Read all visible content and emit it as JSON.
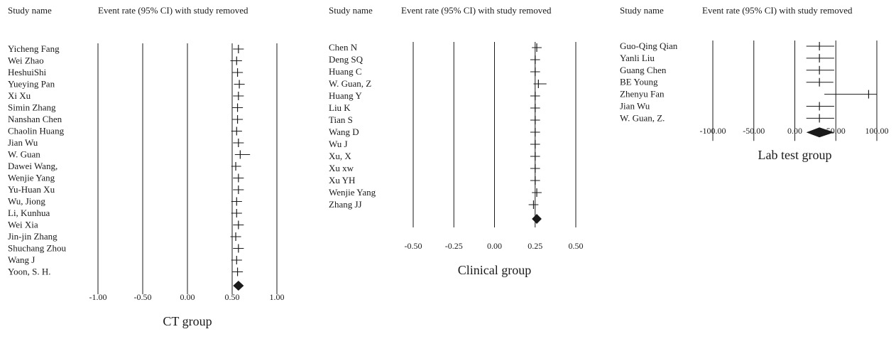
{
  "figure_title": "",
  "header": {
    "study_name": "Study name",
    "event_rate": "Event rate (95% CI) with study removed"
  },
  "colors": {
    "ink": "#1a1a1a",
    "background": "#ffffff"
  },
  "chart_data": [
    {
      "type": "forest",
      "title": "CT group",
      "xlabel": "CT group",
      "xlim": [
        -1.0,
        1.0
      ],
      "ticks": [
        "-1.00",
        "-0.50",
        "0.00",
        "0.50",
        "1.00"
      ],
      "studies": [
        {
          "name": "Yicheng Fang",
          "est": 0.57,
          "lo": 0.51,
          "hi": 0.63
        },
        {
          "name": "Wei Zhao",
          "est": 0.55,
          "lo": 0.48,
          "hi": 0.61
        },
        {
          "name": "HeshuiShi",
          "est": 0.56,
          "lo": 0.5,
          "hi": 0.62
        },
        {
          "name": "Yueying Pan",
          "est": 0.58,
          "lo": 0.52,
          "hi": 0.64
        },
        {
          "name": "Xi Xu",
          "est": 0.57,
          "lo": 0.51,
          "hi": 0.63
        },
        {
          "name": "Simin Zhang",
          "est": 0.56,
          "lo": 0.5,
          "hi": 0.62
        },
        {
          "name": "Nanshan Chen",
          "est": 0.56,
          "lo": 0.5,
          "hi": 0.62
        },
        {
          "name": "Chaolin Huang",
          "est": 0.55,
          "lo": 0.49,
          "hi": 0.61
        },
        {
          "name": "Jian Wu",
          "est": 0.57,
          "lo": 0.51,
          "hi": 0.63
        },
        {
          "name": "W. Guan",
          "est": 0.59,
          "lo": 0.53,
          "hi": 0.7
        },
        {
          "name": "Dawei Wang,",
          "est": 0.54,
          "lo": 0.49,
          "hi": 0.6
        },
        {
          "name": "Wenjie Yang",
          "est": 0.57,
          "lo": 0.51,
          "hi": 0.63
        },
        {
          "name": "Yu-Huan Xu",
          "est": 0.57,
          "lo": 0.51,
          "hi": 0.63
        },
        {
          "name": "Wu, Jiong",
          "est": 0.55,
          "lo": 0.49,
          "hi": 0.61
        },
        {
          "name": "Li, Kunhua",
          "est": 0.55,
          "lo": 0.49,
          "hi": 0.61
        },
        {
          "name": "Wei Xia",
          "est": 0.57,
          "lo": 0.51,
          "hi": 0.63
        },
        {
          "name": "Jin-jin Zhang",
          "est": 0.54,
          "lo": 0.48,
          "hi": 0.6
        },
        {
          "name": "Shuchang Zhou",
          "est": 0.57,
          "lo": 0.51,
          "hi": 0.63
        },
        {
          "name": "Wang J",
          "est": 0.55,
          "lo": 0.49,
          "hi": 0.61
        },
        {
          "name": "Yoon, S. H.",
          "est": 0.56,
          "lo": 0.5,
          "hi": 0.62
        }
      ],
      "summary": {
        "est": 0.57,
        "lo": 0.51,
        "hi": 0.63
      }
    },
    {
      "type": "forest",
      "title": "Clinical group",
      "xlabel": "Clinical group",
      "xlim": [
        -0.5,
        0.5
      ],
      "ticks": [
        "-0.50",
        "-0.25",
        "0.00",
        "0.25",
        "0.50"
      ],
      "studies": [
        {
          "name": "Chen N",
          "est": 0.26,
          "lo": 0.23,
          "hi": 0.29
        },
        {
          "name": "Deng SQ",
          "est": 0.25,
          "lo": 0.22,
          "hi": 0.28
        },
        {
          "name": "Huang C",
          "est": 0.25,
          "lo": 0.22,
          "hi": 0.28
        },
        {
          "name": "W. Guan, Z",
          "est": 0.27,
          "lo": 0.24,
          "hi": 0.32
        },
        {
          "name": "Huang Y",
          "est": 0.25,
          "lo": 0.22,
          "hi": 0.28
        },
        {
          "name": "Liu K",
          "est": 0.25,
          "lo": 0.22,
          "hi": 0.28
        },
        {
          "name": "Tian S",
          "est": 0.25,
          "lo": 0.22,
          "hi": 0.28
        },
        {
          "name": "Wang D",
          "est": 0.25,
          "lo": 0.22,
          "hi": 0.28
        },
        {
          "name": "Wu J",
          "est": 0.25,
          "lo": 0.22,
          "hi": 0.28
        },
        {
          "name": "Xu, X",
          "est": 0.25,
          "lo": 0.22,
          "hi": 0.28
        },
        {
          "name": "Xu xw",
          "est": 0.25,
          "lo": 0.22,
          "hi": 0.28
        },
        {
          "name": "Xu YH",
          "est": 0.25,
          "lo": 0.22,
          "hi": 0.28
        },
        {
          "name": "Wenjie Yang",
          "est": 0.26,
          "lo": 0.23,
          "hi": 0.29
        },
        {
          "name": "Zhang JJ",
          "est": 0.24,
          "lo": 0.21,
          "hi": 0.27
        }
      ],
      "summary": {
        "est": 0.26,
        "lo": 0.23,
        "hi": 0.29
      }
    },
    {
      "type": "forest",
      "title": "Lab test group",
      "xlabel": "Lab test group",
      "xlim": [
        -100.0,
        100.0
      ],
      "ticks": [
        "-100.00",
        "-50.00",
        "0.00",
        "50.00",
        "100.00"
      ],
      "studies": [
        {
          "name": "Guo-Qing Qian",
          "est": 30,
          "lo": 14,
          "hi": 48
        },
        {
          "name": "Yanli Liu",
          "est": 30,
          "lo": 14,
          "hi": 48
        },
        {
          "name": "Guang Chen",
          "est": 30,
          "lo": 14,
          "hi": 48
        },
        {
          "name": "BE Young",
          "est": 30,
          "lo": 14,
          "hi": 47
        },
        {
          "name": "Zhenyu Fan",
          "est": 90,
          "lo": 36,
          "hi": 100
        },
        {
          "name": "Jian Wu",
          "est": 30,
          "lo": 14,
          "hi": 48
        },
        {
          "name": "W. Guan, Z.",
          "est": 30,
          "lo": 14,
          "hi": 48
        }
      ],
      "summary": {
        "est": 30,
        "lo": 14,
        "hi": 48
      }
    }
  ]
}
